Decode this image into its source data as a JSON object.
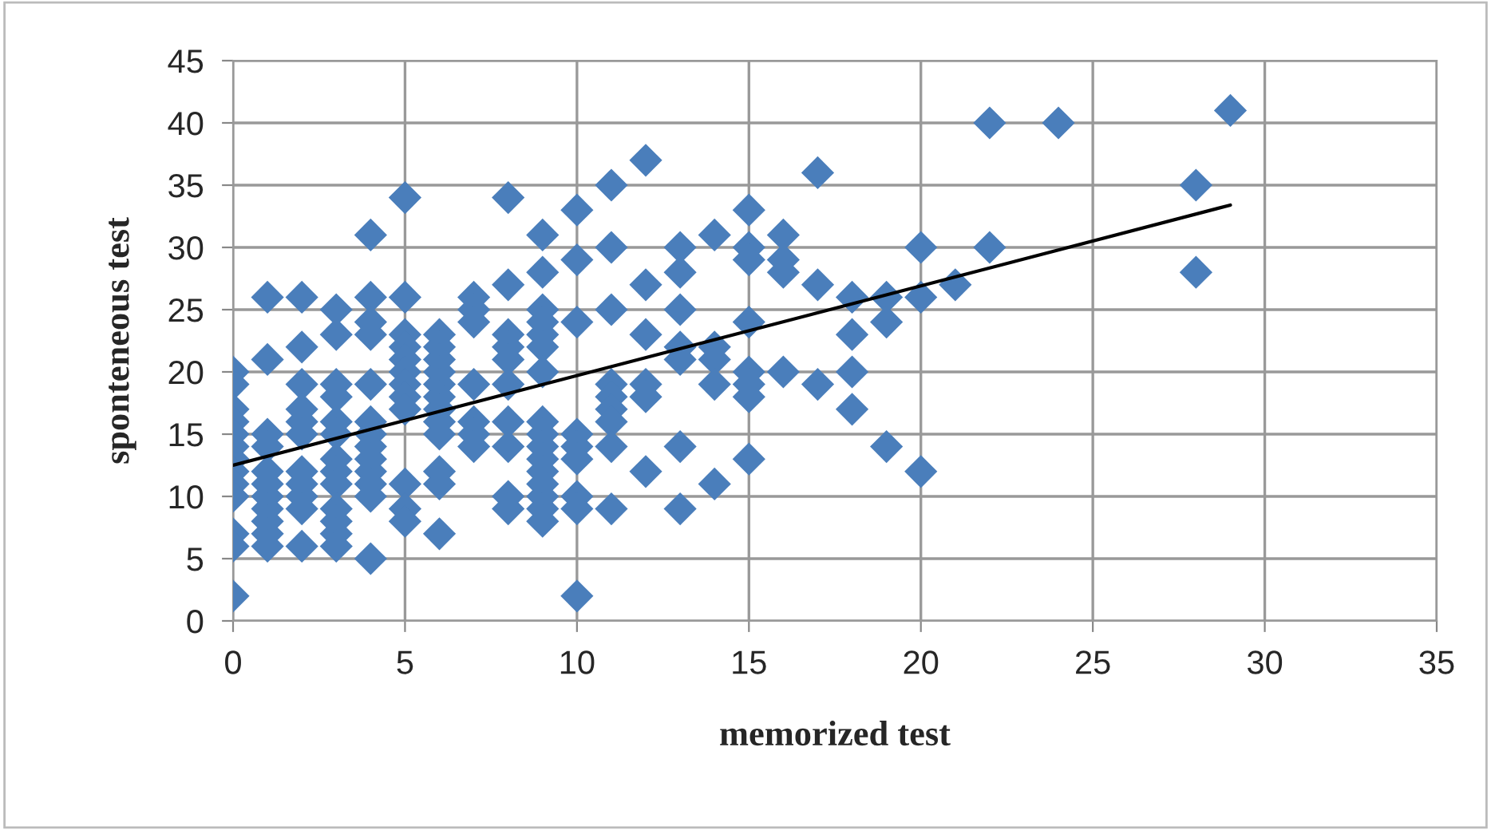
{
  "chart_data": {
    "type": "scatter",
    "xlabel": "memorized test",
    "ylabel": "sponteneous test",
    "xlim": [
      0,
      35
    ],
    "xticks": [
      0,
      5,
      10,
      15,
      20,
      25,
      30,
      35
    ],
    "ylim": [
      0,
      45
    ],
    "yticks": [
      0,
      5,
      10,
      15,
      20,
      25,
      30,
      35,
      40,
      45
    ],
    "grid": true,
    "legend": false,
    "marker": "diamond",
    "series": [
      {
        "color": "#4a7ebb",
        "x": [
          0,
          0,
          0,
          0,
          0,
          0,
          0,
          0,
          0,
          0,
          0,
          0,
          0,
          1,
          1,
          1,
          1,
          1,
          1,
          1,
          1,
          1,
          1,
          1,
          2,
          2,
          2,
          2,
          2,
          2,
          2,
          2,
          2,
          2,
          2,
          3,
          3,
          3,
          3,
          3,
          3,
          3,
          3,
          3,
          3,
          3,
          3,
          3,
          4,
          4,
          4,
          4,
          4,
          4,
          4,
          4,
          4,
          4,
          4,
          4,
          4,
          5,
          5,
          5,
          5,
          5,
          5,
          5,
          5,
          5,
          5,
          5,
          5,
          6,
          6,
          6,
          6,
          6,
          6,
          6,
          6,
          6,
          6,
          6,
          6,
          7,
          7,
          7,
          7,
          7,
          7,
          7,
          8,
          8,
          8,
          8,
          8,
          8,
          8,
          8,
          8,
          8,
          9,
          9,
          9,
          9,
          9,
          9,
          9,
          9,
          9,
          9,
          9,
          9,
          9,
          9,
          9,
          9,
          10,
          10,
          10,
          10,
          10,
          10,
          10,
          10,
          10,
          11,
          11,
          11,
          11,
          11,
          11,
          11,
          11,
          11,
          12,
          12,
          12,
          12,
          12,
          12,
          13,
          13,
          13,
          13,
          13,
          13,
          13,
          14,
          14,
          14,
          14,
          14,
          15,
          15,
          15,
          15,
          15,
          15,
          15,
          15,
          16,
          16,
          16,
          16,
          17,
          17,
          17,
          18,
          18,
          18,
          18,
          19,
          19,
          19,
          20,
          20,
          20,
          21,
          22,
          22,
          24,
          28,
          28,
          29
        ],
        "values": [
          20,
          19,
          17,
          16,
          15,
          14,
          13,
          12,
          11,
          10,
          7,
          6,
          2,
          26,
          21,
          15,
          14,
          12,
          11,
          10,
          9,
          8,
          7,
          6,
          26,
          22,
          19,
          17,
          16,
          15,
          12,
          11,
          10,
          9,
          6,
          25,
          23,
          19,
          18,
          16,
          15,
          13,
          12,
          11,
          9,
          8,
          7,
          6,
          31,
          26,
          24,
          23,
          19,
          16,
          15,
          14,
          13,
          12,
          11,
          10,
          5,
          34,
          26,
          23,
          22,
          21,
          20,
          19,
          18,
          17,
          11,
          9,
          8,
          23,
          22,
          21,
          20,
          19,
          18,
          17,
          16,
          15,
          12,
          11,
          7,
          26,
          25,
          24,
          19,
          16,
          15,
          14,
          34,
          27,
          23,
          22,
          21,
          19,
          16,
          14,
          10,
          9,
          31,
          28,
          25,
          24,
          23,
          22,
          20,
          16,
          15,
          14,
          13,
          12,
          11,
          10,
          9,
          8,
          33,
          29,
          24,
          15,
          14,
          13,
          10,
          9,
          2,
          35,
          30,
          25,
          19,
          18,
          17,
          16,
          14,
          9,
          37,
          27,
          23,
          19,
          18,
          12,
          30,
          28,
          25,
          22,
          21,
          14,
          9,
          31,
          22,
          21,
          19,
          11,
          33,
          30,
          29,
          24,
          20,
          19,
          18,
          13,
          31,
          29,
          28,
          20,
          36,
          27,
          19,
          26,
          23,
          20,
          17,
          26,
          24,
          14,
          30,
          26,
          12,
          27,
          40,
          30,
          40,
          35,
          28,
          41
        ]
      },
      {
        "type": "line",
        "color": "#000000",
        "x": [
          0,
          29
        ],
        "values": [
          12.5,
          33.4
        ],
        "marker": "none"
      }
    ]
  }
}
